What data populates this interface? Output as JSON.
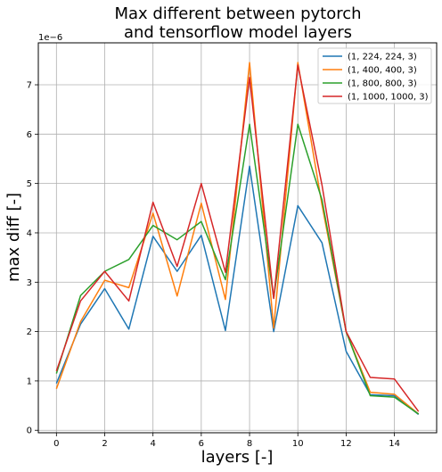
{
  "chart_data": {
    "type": "line",
    "title_lines": [
      "Max different between pytorch",
      "and tensorflow model layers"
    ],
    "xlabel": "layers [-]",
    "ylabel": "max diff [-]",
    "y_offset_label": "1e−6",
    "xlim": [
      -0.75,
      15.75
    ],
    "ylim": [
      -0.05,
      7.85
    ],
    "xticks": [
      0,
      2,
      4,
      6,
      8,
      10,
      12,
      14
    ],
    "yticks": [
      0,
      1,
      2,
      3,
      4,
      5,
      6,
      7
    ],
    "grid": true,
    "legend_position": "top-right",
    "x": [
      0,
      1,
      2,
      3,
      4,
      5,
      6,
      7,
      8,
      9,
      10,
      11,
      12,
      13,
      14,
      15
    ],
    "series": [
      {
        "name": "(1, 224, 224, 3)",
        "color": "#1f77b4",
        "values": [
          0.95,
          2.15,
          2.87,
          2.05,
          3.93,
          3.22,
          3.95,
          2.02,
          5.35,
          2.0,
          4.55,
          3.8,
          1.6,
          0.72,
          0.7,
          0.32
        ]
      },
      {
        "name": "(1, 400, 400, 3)",
        "color": "#ff7f0e",
        "values": [
          0.84,
          2.2,
          3.04,
          2.89,
          4.4,
          2.72,
          4.6,
          2.65,
          7.45,
          2.07,
          7.45,
          4.57,
          2.0,
          0.77,
          0.73,
          0.33
        ]
      },
      {
        "name": "(1, 800, 800, 3)",
        "color": "#2ca02c",
        "values": [
          1.15,
          2.73,
          3.22,
          3.46,
          4.15,
          3.86,
          4.23,
          3.05,
          6.2,
          2.68,
          6.2,
          4.67,
          2.0,
          0.7,
          0.67,
          0.33
        ]
      },
      {
        "name": "(1, 1000, 1000, 3)",
        "color": "#d62728",
        "values": [
          1.2,
          2.62,
          3.22,
          2.62,
          4.62,
          3.32,
          5.0,
          3.2,
          7.15,
          2.67,
          7.4,
          4.97,
          2.0,
          1.07,
          1.04,
          0.38
        ]
      }
    ]
  }
}
